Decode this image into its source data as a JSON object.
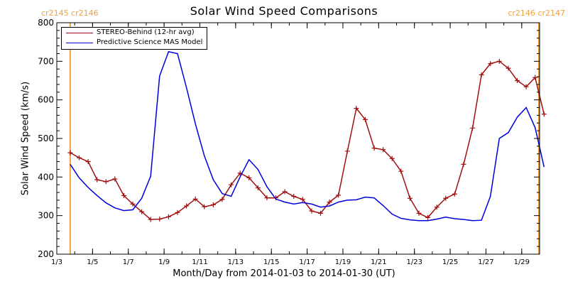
{
  "chart_data": {
    "type": "line",
    "title": "Solar Wind Speed Comparisons",
    "xlabel": "Month/Day from 2014-01-03 to 2014-01-30 (UT)",
    "ylabel": "Solar Wind Speed (km/s)",
    "ylim": [
      200,
      800
    ],
    "y_ticks": [
      200,
      300,
      400,
      500,
      600,
      700,
      800
    ],
    "xlim": [
      "2014-01-03",
      "2014-01-30"
    ],
    "x_tick_labels": [
      {
        "date": "2014-01-03",
        "label": "1/3"
      },
      {
        "date": "2014-01-05",
        "label": "1/5"
      },
      {
        "date": "2014-01-07",
        "label": "1/7"
      },
      {
        "date": "2014-01-09",
        "label": "1/9"
      },
      {
        "date": "2014-01-11",
        "label": "1/11"
      },
      {
        "date": "2014-01-13",
        "label": "1/13"
      },
      {
        "date": "2014-01-15",
        "label": "1/15"
      },
      {
        "date": "2014-01-17",
        "label": "1/17"
      },
      {
        "date": "2014-01-19",
        "label": "1/19"
      },
      {
        "date": "2014-01-21",
        "label": "1/21"
      },
      {
        "date": "2014-01-23",
        "label": "1/23"
      },
      {
        "date": "2014-01-25",
        "label": "1/25"
      },
      {
        "date": "2014-01-27",
        "label": "1/27"
      },
      {
        "date": "2014-01-29",
        "label": "1/29"
      }
    ],
    "legend_position": "top-left",
    "carrington_markers": [
      {
        "date": "2014-01-03 18:00",
        "label": "cr2145 cr2146",
        "color": "#f0a040"
      },
      {
        "date": "2014-01-29 23:00",
        "label": "cr2146 cr2147",
        "color": "#f0a040"
      }
    ],
    "series": [
      {
        "name": "STEREO-Behind (12-hr avg)",
        "color": "#a01010",
        "markers": "plus",
        "x": [
          "2014-01-03 18:00",
          "2014-01-04 06:00",
          "2014-01-04 18:00",
          "2014-01-05 06:00",
          "2014-01-05 18:00",
          "2014-01-06 06:00",
          "2014-01-06 18:00",
          "2014-01-07 06:00",
          "2014-01-07 18:00",
          "2014-01-08 06:00",
          "2014-01-08 18:00",
          "2014-01-09 06:00",
          "2014-01-09 18:00",
          "2014-01-10 06:00",
          "2014-01-10 18:00",
          "2014-01-11 06:00",
          "2014-01-11 18:00",
          "2014-01-12 06:00",
          "2014-01-12 18:00",
          "2014-01-13 06:00",
          "2014-01-13 18:00",
          "2014-01-14 06:00",
          "2014-01-14 18:00",
          "2014-01-15 06:00",
          "2014-01-15 18:00",
          "2014-01-16 06:00",
          "2014-01-16 18:00",
          "2014-01-17 06:00",
          "2014-01-17 18:00",
          "2014-01-18 06:00",
          "2014-01-18 18:00",
          "2014-01-19 06:00",
          "2014-01-19 18:00",
          "2014-01-20 06:00",
          "2014-01-20 18:00",
          "2014-01-21 06:00",
          "2014-01-21 18:00",
          "2014-01-22 06:00",
          "2014-01-22 18:00",
          "2014-01-23 06:00",
          "2014-01-23 18:00",
          "2014-01-24 06:00",
          "2014-01-24 18:00",
          "2014-01-25 06:00",
          "2014-01-25 18:00",
          "2014-01-26 06:00",
          "2014-01-26 18:00",
          "2014-01-27 06:00",
          "2014-01-27 18:00",
          "2014-01-28 06:00",
          "2014-01-28 18:00",
          "2014-01-29 06:00",
          "2014-01-29 18:00",
          "2014-01-30 06:00"
        ],
        "values": [
          463,
          450,
          440,
          393,
          388,
          395,
          352,
          330,
          310,
          290,
          291,
          297,
          308,
          325,
          343,
          323,
          328,
          342,
          380,
          410,
          398,
          372,
          346,
          346,
          362,
          350,
          342,
          312,
          306,
          335,
          353,
          467,
          578,
          549,
          475,
          471,
          448,
          415,
          345,
          306,
          295,
          322,
          345,
          356,
          433,
          527,
          665,
          694,
          700,
          682,
          650,
          634,
          658,
          563
        ]
      },
      {
        "name": "Predictive Science MAS Model",
        "color": "#0000dd",
        "markers": "none",
        "x": [
          "2014-01-03 18:00",
          "2014-01-04 06:00",
          "2014-01-04 18:00",
          "2014-01-05 06:00",
          "2014-01-05 18:00",
          "2014-01-06 06:00",
          "2014-01-06 18:00",
          "2014-01-07 06:00",
          "2014-01-07 18:00",
          "2014-01-08 06:00",
          "2014-01-08 18:00",
          "2014-01-09 06:00",
          "2014-01-09 18:00",
          "2014-01-10 06:00",
          "2014-01-10 18:00",
          "2014-01-11 06:00",
          "2014-01-11 18:00",
          "2014-01-12 06:00",
          "2014-01-12 18:00",
          "2014-01-13 06:00",
          "2014-01-13 18:00",
          "2014-01-14 06:00",
          "2014-01-14 18:00",
          "2014-01-15 06:00",
          "2014-01-15 18:00",
          "2014-01-16 06:00",
          "2014-01-16 18:00",
          "2014-01-17 06:00",
          "2014-01-17 18:00",
          "2014-01-18 06:00",
          "2014-01-18 18:00",
          "2014-01-19 06:00",
          "2014-01-19 18:00",
          "2014-01-20 06:00",
          "2014-01-20 18:00",
          "2014-01-21 06:00",
          "2014-01-21 18:00",
          "2014-01-22 06:00",
          "2014-01-22 18:00",
          "2014-01-23 06:00",
          "2014-01-23 18:00",
          "2014-01-24 06:00",
          "2014-01-24 18:00",
          "2014-01-25 06:00",
          "2014-01-25 18:00",
          "2014-01-26 06:00",
          "2014-01-26 18:00",
          "2014-01-27 06:00",
          "2014-01-27 18:00",
          "2014-01-28 06:00",
          "2014-01-28 18:00",
          "2014-01-29 06:00",
          "2014-01-29 18:00",
          "2014-01-30 06:00"
        ],
        "values": [
          433,
          398,
          373,
          352,
          333,
          320,
          313,
          315,
          345,
          402,
          662,
          725,
          720,
          632,
          538,
          455,
          393,
          357,
          350,
          400,
          445,
          420,
          375,
          343,
          335,
          330,
          334,
          330,
          322,
          325,
          335,
          340,
          341,
          348,
          346,
          326,
          304,
          293,
          289,
          287,
          287,
          291,
          296,
          292,
          290,
          287,
          288,
          350,
          500,
          515,
          555,
          580,
          528,
          426
        ]
      }
    ]
  }
}
